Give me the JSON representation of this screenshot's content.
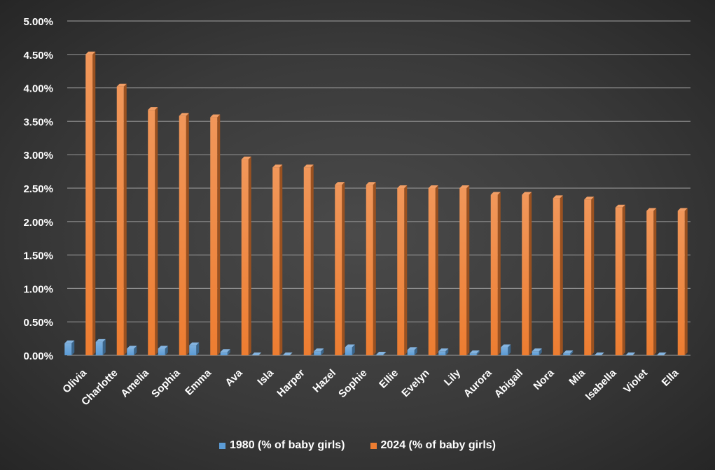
{
  "chart_data": {
    "type": "bar",
    "categories": [
      "Olivia",
      "Charlotte",
      "Amelia",
      "Sophia",
      "Emma",
      "Ava",
      "Isla",
      "Harper",
      "Hazel",
      "Sophie",
      "Ellie",
      "Evelyn",
      "Lily",
      "Aurora",
      "Abigail",
      "Nora",
      "Mia",
      "Isabella",
      "Violet",
      "Ella"
    ],
    "series": [
      {
        "name": "1980 (% of baby girls)",
        "color": "#5b9bd5",
        "values": [
          0.18,
          0.2,
          0.1,
          0.1,
          0.15,
          0.05,
          0.0,
          0.0,
          0.06,
          0.12,
          0.01,
          0.08,
          0.06,
          0.03,
          0.12,
          0.06,
          0.03,
          0.0,
          0.0,
          0.0
        ]
      },
      {
        "name": "2024 (% of baby girls)",
        "color": "#ed7d31",
        "values": [
          4.5,
          4.02,
          3.67,
          3.58,
          3.56,
          2.93,
          2.81,
          2.81,
          2.55,
          2.55,
          2.5,
          2.5,
          2.5,
          2.4,
          2.4,
          2.35,
          2.33,
          2.21,
          2.16,
          2.16
        ]
      }
    ],
    "yticks": [
      "0.00%",
      "0.50%",
      "1.00%",
      "1.50%",
      "2.00%",
      "2.50%",
      "3.00%",
      "3.50%",
      "4.00%",
      "4.50%",
      "5.00%"
    ],
    "ylim": [
      0,
      5
    ],
    "grid": true,
    "legend": "bottom",
    "title": "",
    "xlabel": "",
    "ylabel": ""
  }
}
